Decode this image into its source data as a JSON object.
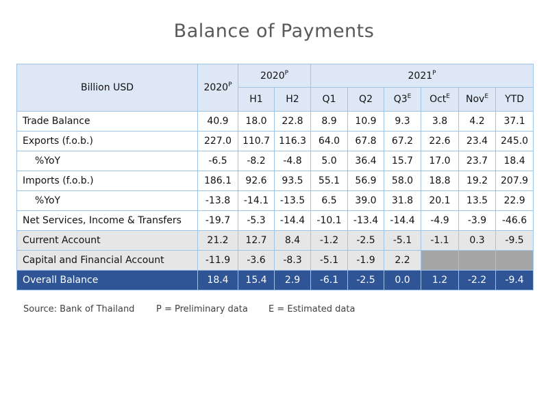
{
  "title": "Balance of Payments",
  "table": {
    "unit_label": "Billion USD",
    "col_2020": {
      "text": "2020",
      "sup": "P"
    },
    "group_2020": {
      "text": "2020",
      "sup": "P"
    },
    "group_2021": {
      "text": "2021",
      "sup": "P"
    },
    "sub_headers": [
      {
        "text": "H1",
        "sup": ""
      },
      {
        "text": "H2",
        "sup": ""
      },
      {
        "text": "Q1",
        "sup": ""
      },
      {
        "text": "Q2",
        "sup": ""
      },
      {
        "text": "Q3",
        "sup": "E"
      },
      {
        "text": "Oct",
        "sup": "E"
      },
      {
        "text": "Nov",
        "sup": "E"
      },
      {
        "text": "YTD",
        "sup": ""
      }
    ],
    "rows": [
      {
        "label": "Trade Balance",
        "values": [
          "40.9",
          "18.0",
          "22.8",
          "8.9",
          "10.9",
          "9.3",
          "3.8",
          "4.2",
          "37.1"
        ]
      },
      {
        "label": "Exports (f.o.b.)",
        "values": [
          "227.0",
          "110.7",
          "116.3",
          "64.0",
          "67.8",
          "67.2",
          "22.6",
          "23.4",
          "245.0"
        ]
      },
      {
        "label": "%YoY",
        "values": [
          "-6.5",
          "-8.2",
          "-4.8",
          "5.0",
          "36.4",
          "15.7",
          "17.0",
          "23.7",
          "18.4"
        ]
      },
      {
        "label": "Imports (f.o.b.)",
        "values": [
          "186.1",
          "92.6",
          "93.5",
          "55.1",
          "56.9",
          "58.0",
          "18.8",
          "19.2",
          "207.9"
        ]
      },
      {
        "label": "%YoY",
        "values": [
          "-13.8",
          "-14.1",
          "-13.5",
          "6.5",
          "39.0",
          "31.8",
          "20.1",
          "13.5",
          "22.9"
        ]
      },
      {
        "label": "Net Services, Income & Transfers",
        "values": [
          "-19.7",
          "-5.3",
          "-14.4",
          "-10.1",
          "-13.4",
          "-14.4",
          "-4.9",
          "-3.9",
          "-46.6"
        ]
      },
      {
        "label": "Current Account",
        "values": [
          "21.2",
          "12.7",
          "8.4",
          "-1.2",
          "-2.5",
          "-5.1",
          "-1.1",
          "0.3",
          "-9.5"
        ]
      },
      {
        "label": "Capital and Financial Account",
        "values": [
          "-11.9",
          "-3.6",
          "-8.3",
          "-5.1",
          "-1.9",
          "2.2",
          "",
          "",
          ""
        ]
      },
      {
        "label": "Overall Balance",
        "values": [
          "18.4",
          "15.4",
          "2.9",
          "-6.1",
          "-2.5",
          "0.0",
          "1.2",
          "-2.2",
          "-9.4"
        ]
      }
    ]
  },
  "footer": {
    "source": "Source: Bank of Thailand",
    "note_p": "P = Preliminary data",
    "note_e": "E = Estimated data"
  },
  "colors": {
    "header_fill": "#dde7f5",
    "border": "#9dc3e6",
    "grey_row": "#e7e6e6",
    "blank_cell": "#a6a6a6",
    "overall_row": "#2f5596",
    "title": "#595959"
  }
}
